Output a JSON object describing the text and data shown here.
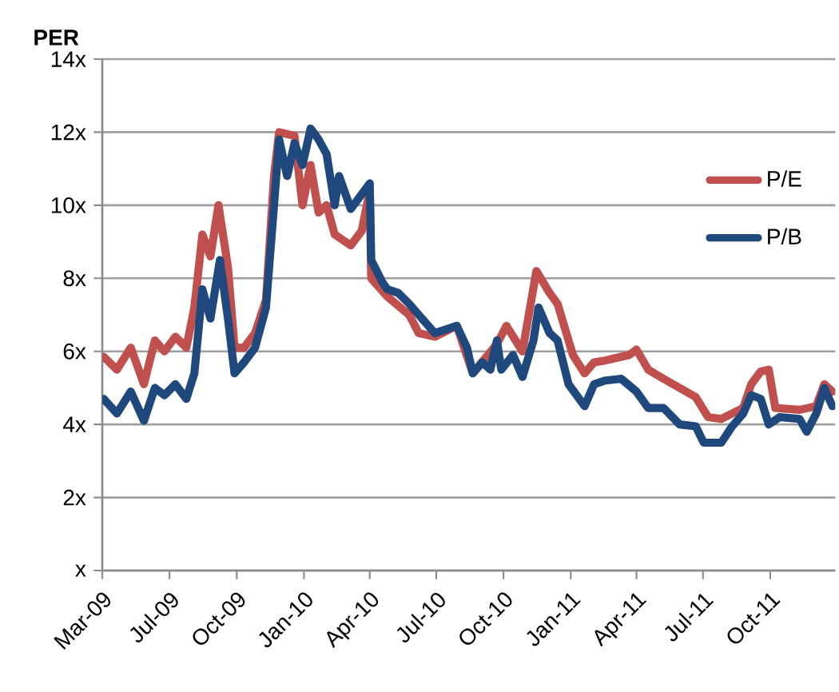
{
  "chart_data": {
    "type": "line",
    "ylabel": "PER",
    "xlim": [
      "2009-03-31",
      "2011-12-29"
    ],
    "xticks": [
      {
        "value": "2009-03-31",
        "label": "Mar-09"
      },
      {
        "value": "2009-07-01",
        "label": "Jul-09"
      },
      {
        "value": "2009-10-01",
        "label": "Oct-09"
      },
      {
        "value": "2010-01-01",
        "label": "Jan-10"
      },
      {
        "value": "2010-04-01",
        "label": "Apr-10"
      },
      {
        "value": "2010-07-01",
        "label": "Jul-10"
      },
      {
        "value": "2010-10-01",
        "label": "Oct-10"
      },
      {
        "value": "2011-01-01",
        "label": "Jan-11"
      },
      {
        "value": "2011-04-01",
        "label": "Apr-11"
      },
      {
        "value": "2011-07-01",
        "label": "Jul-11"
      },
      {
        "value": "2011-10-01",
        "label": "Oct-11"
      }
    ],
    "ylim": [
      0,
      14
    ],
    "yticks": [
      {
        "value": 0,
        "label": "x"
      },
      {
        "value": 2,
        "label": "2x"
      },
      {
        "value": 4,
        "label": "4x"
      },
      {
        "value": 6,
        "label": "6x"
      },
      {
        "value": 8,
        "label": "8x"
      },
      {
        "value": 10,
        "label": "10x"
      },
      {
        "value": 12,
        "label": "12x"
      },
      {
        "value": 14,
        "label": "14x"
      }
    ],
    "grid": "y",
    "legend": "top right",
    "marker": "none",
    "line_style": "solid",
    "series": [
      {
        "name": "P/E",
        "color": "#c0504d",
        "x": [
          "2009-04-02",
          "2009-04-20",
          "2009-05-09",
          "2009-05-27",
          "2009-06-11",
          "2009-06-24",
          "2009-07-09",
          "2009-07-24",
          "2009-08-04",
          "2009-08-15",
          "2009-08-26",
          "2009-09-06",
          "2009-09-19",
          "2009-09-28",
          "2009-10-11",
          "2009-10-26",
          "2009-11-10",
          "2009-11-21",
          "2009-11-28",
          "2009-12-19",
          "2009-12-30",
          "2010-01-10",
          "2010-01-21",
          "2010-02-01",
          "2010-02-12",
          "2010-03-06",
          "2010-03-21",
          "2010-04-01",
          "2010-04-03",
          "2010-04-25",
          "2010-05-25",
          "2010-06-07",
          "2010-06-29",
          "2010-07-29",
          "2010-08-20",
          "2010-09-22",
          "2010-10-05",
          "2010-10-27",
          "2010-11-15",
          "2010-12-03",
          "2010-12-14",
          "2011-01-04",
          "2011-01-20",
          "2011-02-02",
          "2011-02-17",
          "2011-03-22",
          "2011-04-01",
          "2011-04-17",
          "2011-05-08",
          "2011-05-30",
          "2011-06-21",
          "2011-07-08",
          "2011-07-26",
          "2011-08-25",
          "2011-09-05",
          "2011-09-18",
          "2011-09-29",
          "2011-10-08",
          "2011-11-10",
          "2011-12-03",
          "2011-12-14",
          "2011-12-25"
        ],
        "values": [
          5.85,
          5.5,
          6.1,
          5.1,
          6.3,
          6.0,
          6.4,
          6.1,
          7.2,
          9.2,
          8.6,
          10.0,
          8.3,
          6.1,
          6.1,
          6.5,
          7.4,
          10.8,
          12.0,
          11.9,
          10.0,
          11.1,
          9.8,
          10.0,
          9.2,
          8.9,
          9.3,
          10.4,
          8.0,
          7.5,
          7.0,
          6.5,
          6.4,
          6.7,
          5.4,
          6.2,
          6.7,
          6.0,
          8.2,
          7.6,
          7.3,
          5.9,
          5.4,
          5.7,
          5.75,
          5.9,
          6.05,
          5.5,
          5.25,
          5.0,
          4.75,
          4.2,
          4.15,
          4.45,
          5.1,
          5.45,
          5.5,
          4.45,
          4.4,
          4.5,
          5.1,
          4.9
        ]
      },
      {
        "name": "P/B",
        "color": "#1f497d",
        "x": [
          "2009-04-02",
          "2009-04-20",
          "2009-05-09",
          "2009-05-27",
          "2009-06-11",
          "2009-06-24",
          "2009-07-09",
          "2009-07-24",
          "2009-08-04",
          "2009-08-15",
          "2009-08-26",
          "2009-09-08",
          "2009-09-19",
          "2009-09-28",
          "2009-10-11",
          "2009-10-26",
          "2009-11-10",
          "2009-11-21",
          "2009-11-28",
          "2009-12-09",
          "2009-12-19",
          "2009-12-30",
          "2010-01-10",
          "2010-01-21",
          "2010-02-01",
          "2010-02-12",
          "2010-02-18",
          "2010-03-06",
          "2010-03-21",
          "2010-04-01",
          "2010-04-03",
          "2010-04-18",
          "2010-04-25",
          "2010-05-10",
          "2010-05-25",
          "2010-06-07",
          "2010-06-29",
          "2010-07-29",
          "2010-08-12",
          "2010-08-20",
          "2010-09-02",
          "2010-09-13",
          "2010-09-22",
          "2010-09-28",
          "2010-10-14",
          "2010-10-27",
          "2010-11-11",
          "2010-11-18",
          "2010-12-03",
          "2010-12-14",
          "2010-12-29",
          "2011-01-20",
          "2011-02-02",
          "2011-02-17",
          "2011-03-11",
          "2011-04-01",
          "2011-04-17",
          "2011-05-08",
          "2011-05-30",
          "2011-06-21",
          "2011-07-02",
          "2011-07-26",
          "2011-08-10",
          "2011-08-25",
          "2011-09-05",
          "2011-09-18",
          "2011-09-29",
          "2011-10-14",
          "2011-11-10",
          "2011-11-20",
          "2011-12-03",
          "2011-12-14",
          "2011-12-25"
        ],
        "values": [
          4.7,
          4.3,
          4.9,
          4.1,
          5.0,
          4.8,
          5.1,
          4.7,
          5.4,
          7.7,
          6.9,
          8.5,
          6.9,
          5.4,
          5.7,
          6.1,
          7.2,
          10.0,
          11.8,
          10.8,
          11.7,
          11.1,
          12.1,
          11.8,
          11.4,
          10.0,
          10.8,
          9.9,
          10.3,
          10.6,
          8.5,
          7.9,
          7.7,
          7.6,
          7.3,
          7.0,
          6.5,
          6.7,
          6.1,
          5.4,
          5.7,
          5.5,
          6.3,
          5.5,
          5.9,
          5.3,
          6.3,
          7.2,
          6.5,
          6.3,
          5.1,
          4.5,
          5.1,
          5.2,
          5.25,
          4.9,
          4.45,
          4.45,
          4.0,
          3.95,
          3.5,
          3.5,
          3.95,
          4.3,
          4.8,
          4.7,
          4.0,
          4.2,
          4.15,
          3.8,
          4.3,
          5.0,
          4.5
        ]
      }
    ]
  }
}
